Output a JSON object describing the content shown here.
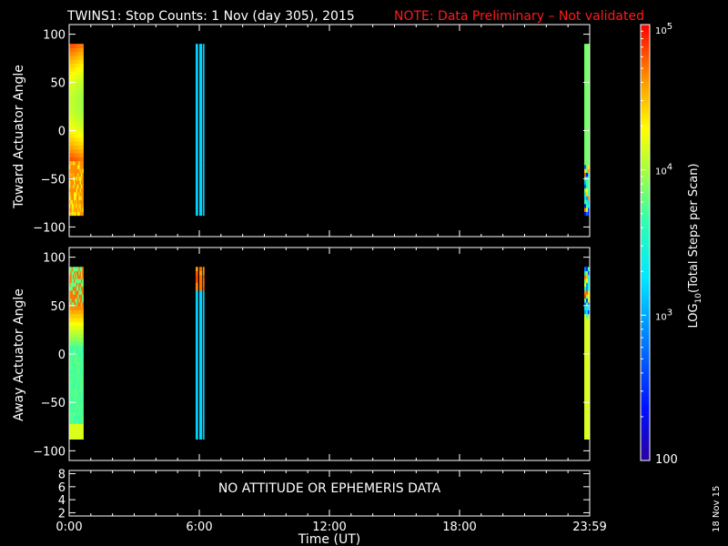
{
  "title": {
    "main": "TWINS1: Stop Counts:  1 Nov (day 305), 2015",
    "note": "NOTE: Data Preliminary – Not validated",
    "note_color": "#ff1a1a"
  },
  "panels": {
    "toward": {
      "ylabel": "Toward Actuator Angle"
    },
    "away": {
      "ylabel": "Away Actuator Angle"
    },
    "bottom": {
      "message": "NO ATTITUDE OR EPHEMERIS DATA"
    }
  },
  "x_axis": {
    "label": "Time (UT)"
  },
  "colorbar": {
    "label": "LOG10(Total Steps per Scan)",
    "log_base": "LOG",
    "log_sub": "10",
    "log_rest": "(Total Steps per Scan)",
    "ticks": [
      {
        "value": 100,
        "base": "100",
        "exp": ""
      },
      {
        "value": 1000,
        "base": "10",
        "exp": "3"
      },
      {
        "value": 10000,
        "base": "10",
        "exp": "4"
      },
      {
        "value": 100000,
        "base": "10",
        "exp": "5"
      }
    ]
  },
  "date_stamp": "18 Nov 15",
  "chart_data": [
    {
      "type": "heatmap",
      "name": "toward",
      "ylabel": "Toward Actuator Angle",
      "xlim": [
        0,
        24
      ],
      "ylim": [
        -110,
        110
      ],
      "yticks": [
        100,
        50,
        0,
        -50,
        -100
      ],
      "ytick_labels": [
        "100",
        "50",
        "0",
        "−50",
        "−100"
      ],
      "angle_range": [
        -88,
        90
      ],
      "z_scale": "log",
      "z_range": [
        100,
        100000
      ],
      "blocks": [
        {
          "t0": 0.0,
          "t1": 0.65,
          "pattern": "scan"
        },
        {
          "t0": 5.83,
          "t1": 5.93,
          "pattern": "flat",
          "value": 1500
        },
        {
          "t0": 6.0,
          "t1": 6.12,
          "pattern": "flat",
          "value": 1500
        },
        {
          "t0": 6.17,
          "t1": 6.22,
          "pattern": "flat",
          "value": 1500
        },
        {
          "t0": 23.75,
          "t1": 24.0,
          "pattern": "edge"
        }
      ]
    },
    {
      "type": "heatmap",
      "name": "away",
      "ylabel": "Away Actuator Angle",
      "xlim": [
        0,
        24
      ],
      "ylim": [
        -110,
        110
      ],
      "yticks": [
        100,
        50,
        0,
        -50,
        -100
      ],
      "ytick_labels": [
        "100",
        "50",
        "0",
        "−50",
        "−100"
      ],
      "angle_range": [
        -88,
        90
      ],
      "z_scale": "log",
      "z_range": [
        100,
        100000
      ],
      "blocks": [
        {
          "t0": 0.0,
          "t1": 0.65,
          "pattern": "scan"
        },
        {
          "t0": 5.83,
          "t1": 5.93,
          "pattern": "flat_top",
          "value": 1500
        },
        {
          "t0": 6.0,
          "t1": 6.12,
          "pattern": "flat_top",
          "value": 1500
        },
        {
          "t0": 6.17,
          "t1": 6.22,
          "pattern": "flat_top",
          "value": 1500
        },
        {
          "t0": 23.75,
          "t1": 24.0,
          "pattern": "edge"
        }
      ]
    },
    {
      "type": "line",
      "name": "position",
      "xlim": [
        0,
        24
      ],
      "ylim": [
        1.5,
        8.5
      ],
      "yticks": [
        8,
        6,
        4,
        2
      ],
      "ytick_labels": [
        "8",
        "6",
        "4",
        "2"
      ],
      "xticks": [
        0,
        6,
        12,
        18,
        24
      ],
      "xtick_labels": [
        "0:00",
        "6:00",
        "12:00",
        "18:00",
        "23:59"
      ],
      "series": []
    }
  ]
}
